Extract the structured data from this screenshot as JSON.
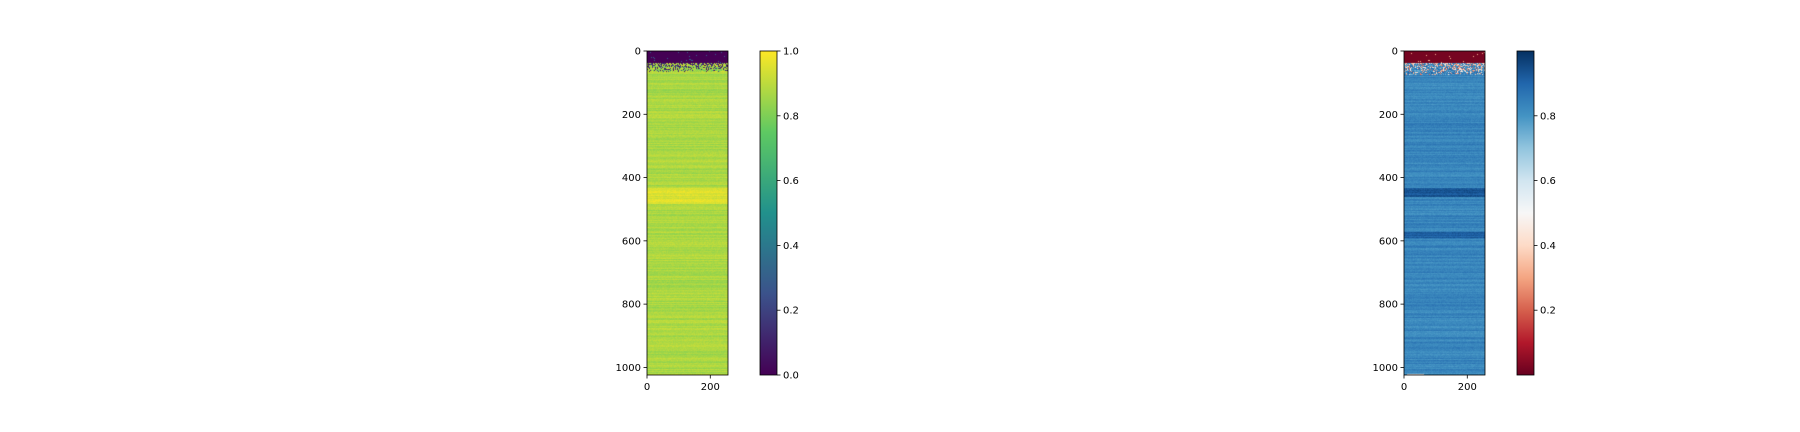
{
  "chart_data": [
    {
      "type": "heatmap",
      "colormap": "viridis",
      "rows": 1024,
      "cols": 256,
      "xlim": [
        0,
        256
      ],
      "ylim": [
        1024,
        0
      ],
      "x_ticks": [
        0,
        200
      ],
      "y_ticks": [
        0,
        200,
        400,
        600,
        800,
        1000
      ],
      "colorbar": {
        "range": [
          0.0,
          1.0
        ],
        "ticks": [
          "0.0",
          "0.2",
          "0.4",
          "0.6",
          "0.8",
          "1.0"
        ],
        "tick_values": [
          0.0,
          0.2,
          0.4,
          0.6,
          0.8,
          1.0
        ]
      },
      "profile": {
        "top_block_rows": 35,
        "top_block_value": 0.0,
        "transition_end_row": 65,
        "body_value": 0.87,
        "body_variation": 0.07,
        "bright_band_rows": [
          430,
          480
        ],
        "bright_band_value": 0.97,
        "bottom_dark_row": 1021
      },
      "xlabel": "",
      "ylabel": "",
      "title": "",
      "grid": false
    },
    {
      "type": "heatmap",
      "colormap": "RdBu",
      "rows": 1024,
      "cols": 256,
      "xlim": [
        0,
        256
      ],
      "ylim": [
        1024,
        0
      ],
      "x_ticks": [
        0,
        200
      ],
      "y_ticks": [
        0,
        200,
        400,
        600,
        800,
        1000
      ],
      "colorbar": {
        "range": [
          0.0,
          1.0
        ],
        "ticks": [
          "0.2",
          "0.4",
          "0.6",
          "0.8"
        ],
        "tick_values": [
          0.2,
          0.4,
          0.6,
          0.8
        ]
      },
      "profile": {
        "top_block_rows": 35,
        "top_block_value": 0.02,
        "transition_end_row": 75,
        "body_value": 0.83,
        "body_variation": 0.06,
        "dark_band_rows": [
          430,
          460
        ],
        "dark_band_value": 0.95,
        "dark_band2_rows": [
          570,
          590
        ],
        "dark_band2_value": 0.93,
        "bottom_light_row": 1020
      },
      "xlabel": "",
      "ylabel": "",
      "title": "",
      "grid": false
    }
  ]
}
